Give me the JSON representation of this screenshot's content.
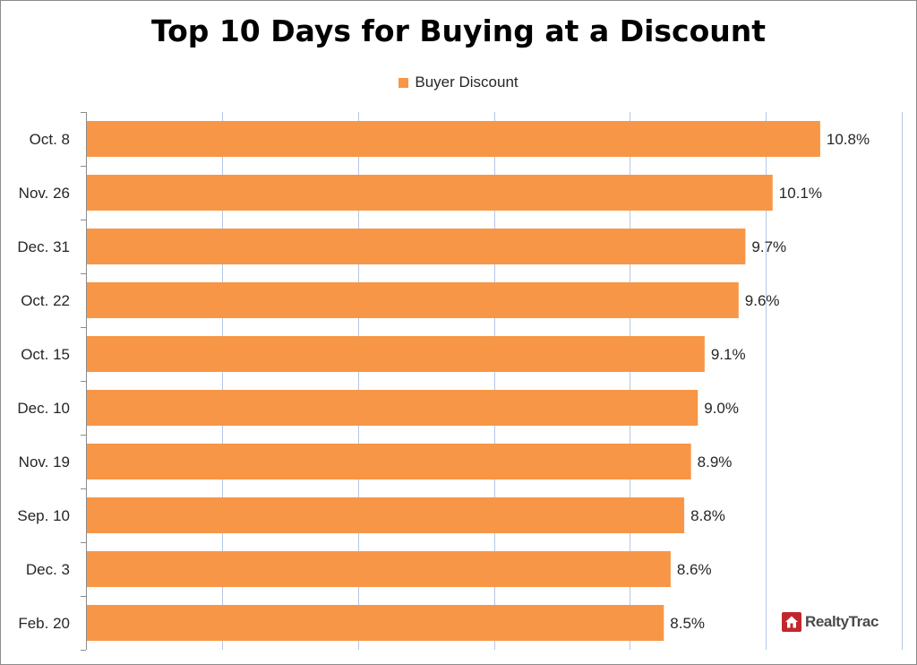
{
  "chart_data": {
    "type": "bar",
    "orientation": "horizontal",
    "title": "Top 10 Days for Buying at a Discount",
    "categories": [
      "Oct. 8",
      "Nov. 26",
      "Dec. 31",
      "Oct. 22",
      "Oct. 15",
      "Dec. 10",
      "Nov. 19",
      "Sep. 10",
      "Dec. 3",
      "Feb. 20"
    ],
    "series": [
      {
        "name": "Buyer Discount",
        "values": [
          10.8,
          10.1,
          9.7,
          9.6,
          9.1,
          9.0,
          8.9,
          8.8,
          8.6,
          8.5
        ],
        "labels": [
          "10.8%",
          "10.1%",
          "9.7%",
          "9.6%",
          "9.1%",
          "9.0%",
          "8.9%",
          "8.8%",
          "8.6%",
          "8.5%"
        ]
      }
    ],
    "xlim": [
      0,
      12
    ],
    "x_grid_step": 2,
    "xlabel": "",
    "ylabel": "",
    "grid": true,
    "x_tick_labels_visible": false,
    "legend_position": "top-center"
  },
  "colors": {
    "bar": "#F79646",
    "grid": "#B4C7E7",
    "axis": "#8C8C8C",
    "logo_red": "#C0282E"
  },
  "branding": {
    "logo_text": "RealtyTrac",
    "logo_icon": "house-icon"
  }
}
